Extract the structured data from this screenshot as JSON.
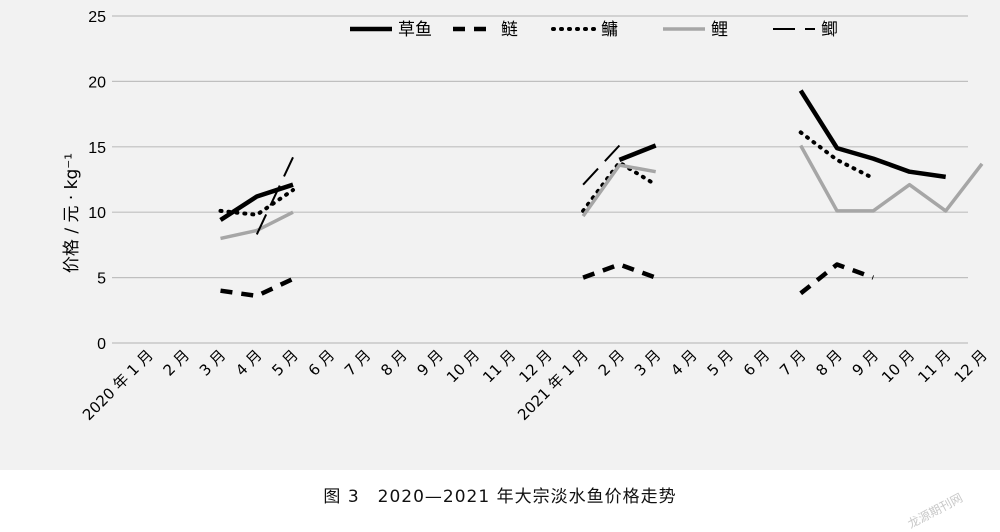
{
  "chart_data": {
    "type": "line",
    "ylabel": "价格 / 元 · kg⁻¹",
    "ylim": [
      0,
      25
    ],
    "yticks": [
      0,
      5,
      10,
      15,
      20,
      25
    ],
    "grid": "horizontal",
    "legend_position": "top",
    "categories": [
      "2020 年 1 月",
      "2 月",
      "3 月",
      "4 月",
      "5 月",
      "6 月",
      "7 月",
      "8 月",
      "9 月",
      "10 月",
      "11 月",
      "12 月",
      "2021 年 1 月",
      "2 月",
      "3 月",
      "4 月",
      "5 月",
      "6 月",
      "7 月",
      "8 月",
      "9 月",
      "10 月",
      "11 月",
      "12 月"
    ],
    "series": [
      {
        "name": "草鱼",
        "style": "solid-thick",
        "color": "#000000",
        "values": [
          null,
          null,
          9.4,
          11.2,
          12.1,
          null,
          null,
          null,
          null,
          null,
          null,
          null,
          null,
          14,
          15.1,
          null,
          null,
          null,
          19.3,
          14.9,
          14.1,
          13.1,
          12.7,
          null
        ]
      },
      {
        "name": "鲢",
        "style": "dashed-thick",
        "color": "#000000",
        "values": [
          null,
          null,
          4.0,
          3.6,
          4.9,
          null,
          null,
          null,
          null,
          null,
          null,
          null,
          5.0,
          6.0,
          5.0,
          null,
          null,
          null,
          3.8,
          6.0,
          5.0,
          null,
          null,
          null
        ]
      },
      {
        "name": "鳙",
        "style": "dotted",
        "color": "#000000",
        "values": [
          null,
          null,
          10.1,
          9.8,
          11.7,
          null,
          null,
          null,
          null,
          null,
          null,
          null,
          10.1,
          13.8,
          12.1,
          null,
          null,
          null,
          16.1,
          14.0,
          12.6,
          null,
          null,
          null
        ]
      },
      {
        "name": "鲤",
        "style": "solid-gray",
        "color": "#a6a6a6",
        "values": [
          null,
          null,
          8.0,
          8.6,
          10.0,
          null,
          null,
          null,
          null,
          null,
          null,
          null,
          9.7,
          13.6,
          13.1,
          null,
          null,
          null,
          15.1,
          10.1,
          10.1,
          12.1,
          10.1,
          13.7
        ]
      },
      {
        "name": "鲫",
        "style": "long-dash",
        "color": "#000000",
        "values": [
          null,
          null,
          null,
          8.3,
          14.2,
          null,
          null,
          null,
          null,
          null,
          null,
          null,
          12.1,
          15.1,
          null,
          null,
          null,
          null,
          null,
          null,
          null,
          null,
          null,
          null
        ]
      }
    ]
  },
  "caption": "图 3　2020—2021 年大宗淡水鱼价格走势",
  "watermark": "龙源期刊网"
}
